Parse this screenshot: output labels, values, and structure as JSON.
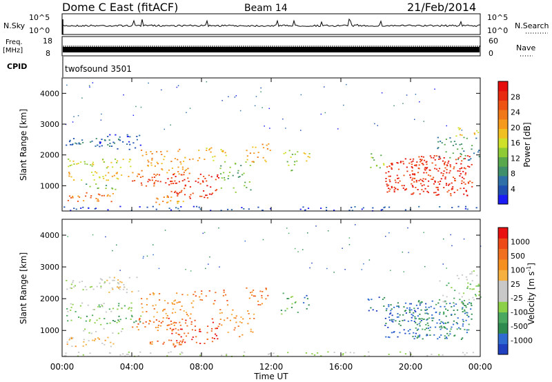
{
  "header": {
    "station": "Dome C East (fitACF)",
    "beam": "Beam 14",
    "date": "21/Feb/2014"
  },
  "sky_panel": {
    "left_label": "N.Sky",
    "right_label": "N.Search",
    "left_ticks": [
      "10^5",
      "10^0"
    ],
    "right_ticks": [
      "10^5",
      "10^0"
    ]
  },
  "freq_panel": {
    "left_label_1": "Freq.",
    "left_label_2": "[MHz]",
    "right_label": "Nave",
    "left_ticks": [
      "18",
      "8"
    ],
    "right_ticks": [
      "60",
      "0"
    ]
  },
  "cpid_panel": {
    "left_label": "CPID",
    "program": "twofsound 3501"
  },
  "chart_data": [
    {
      "type": "heatmap",
      "name": "power",
      "ylabel": "Slant Range [km]",
      "yticks": [
        "1000",
        "2000",
        "3000",
        "4000"
      ],
      "ylim": [
        180,
        4500
      ],
      "xlim_hours": [
        0,
        24
      ],
      "colorbar_label": "Power [dB]",
      "colorbar_ticks": [
        "4",
        "8",
        "12",
        "16",
        "20",
        "24",
        "28"
      ],
      "colorbar_colors": [
        "#1b1bf5",
        "#1f4fb0",
        "#2f6fa8",
        "#3e8f6a",
        "#5aa84c",
        "#8ecb34",
        "#cfe02a",
        "#f0c020",
        "#f59a1c",
        "#f07818",
        "#ee5314",
        "#e82a10",
        "#e60d0d"
      ]
    },
    {
      "type": "heatmap",
      "name": "velocity",
      "ylabel": "Slant Range [km]",
      "yticks": [
        "1000",
        "2000",
        "3000",
        "4000"
      ],
      "ylim": [
        180,
        4500
      ],
      "xlim_hours": [
        0,
        24
      ],
      "xlabel": "Time UT",
      "xticks": [
        "00:00",
        "04:00",
        "08:00",
        "12:00",
        "16:00",
        "20:00",
        "00:00"
      ],
      "colorbar_label": "Velocity [m s",
      "colorbar_label_sup": "-1",
      "colorbar_label_end": "]",
      "colorbar_ticks": [
        "1000",
        "500",
        "100",
        "25",
        "-25",
        "-100",
        "-500",
        "-1000"
      ],
      "colorbar_colors": [
        "#2040c0",
        "#2e6ad0",
        "#2e8a4e",
        "#4aa860",
        "#8cd048",
        "#c8c8c8",
        "#c8c8c8",
        "#f5b040",
        "#f59020",
        "#f07020",
        "#ee4a18",
        "#e81010"
      ]
    }
  ]
}
